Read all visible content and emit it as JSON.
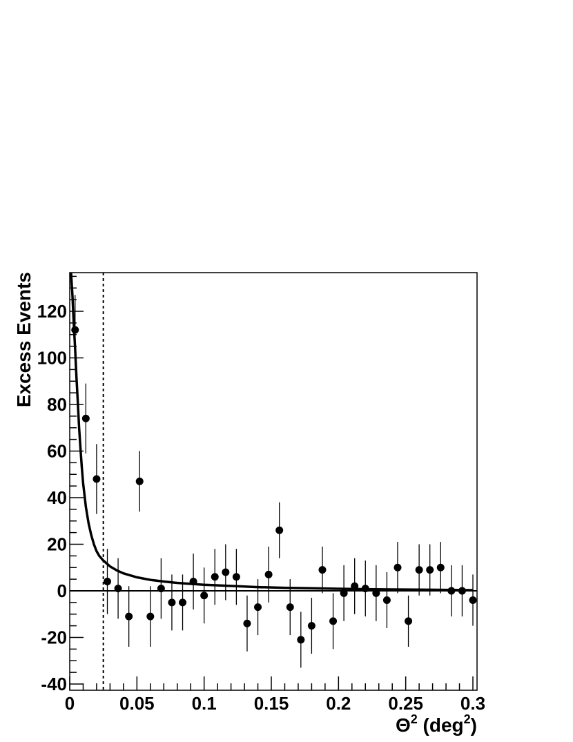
{
  "chart_data": {
    "type": "scatter",
    "title": "",
    "xlabel": {
      "symbol": "Θ",
      "sup": "2",
      "unit_open": " (deg",
      "unit_sup": "2",
      "unit_close": ")"
    },
    "ylabel": "Excess Events",
    "xlim": [
      0,
      0.3
    ],
    "ylim": [
      -40,
      138
    ],
    "grid": false,
    "x_ticks": [
      "0",
      "0.05",
      "0.1",
      "0.15",
      "0.2",
      "0.25",
      "0.3"
    ],
    "x_tick_values": [
      0,
      0.05,
      0.1,
      0.15,
      0.2,
      0.25,
      0.3
    ],
    "y_ticks": [
      "-40",
      "-20",
      "0",
      "20",
      "40",
      "60",
      "80",
      "100",
      "120"
    ],
    "y_tick_values": [
      -40,
      -20,
      0,
      20,
      40,
      60,
      80,
      100,
      120
    ],
    "cut_line_x": 0.025,
    "zero_line_y": 0,
    "series": [
      {
        "x": [
          0.004,
          0.012,
          0.02,
          0.028,
          0.036,
          0.044,
          0.052,
          0.06,
          0.068,
          0.076,
          0.084,
          0.092,
          0.1,
          0.108,
          0.116,
          0.124,
          0.132,
          0.14,
          0.148,
          0.156,
          0.164,
          0.172,
          0.18,
          0.188,
          0.196,
          0.204,
          0.212,
          0.22,
          0.228,
          0.236,
          0.244,
          0.252,
          0.26,
          0.268,
          0.276,
          0.284,
          0.292,
          0.3
        ],
        "y": [
          112,
          74,
          48,
          4,
          1,
          -11,
          47,
          -11,
          1,
          -5,
          -5,
          4,
          -2,
          6,
          8,
          6,
          -14,
          -7,
          7,
          26,
          -7,
          -21,
          -15,
          9,
          -13,
          -1,
          2,
          1,
          -1,
          -4,
          10,
          -13,
          9,
          9,
          10,
          0,
          0,
          -4
        ],
        "yerr": [
          15,
          15,
          15,
          14,
          13,
          13,
          13,
          13,
          13,
          12,
          12,
          12,
          12,
          12,
          12,
          12,
          12,
          12,
          12,
          12,
          12,
          12,
          12,
          10,
          12,
          12,
          12,
          12,
          12,
          12,
          11,
          11,
          11,
          11,
          11,
          11,
          11,
          11
        ]
      }
    ],
    "fit_curve": {
      "x": [
        0.001,
        0.002,
        0.003,
        0.004,
        0.005,
        0.006,
        0.007,
        0.008,
        0.009,
        0.01,
        0.012,
        0.014,
        0.016,
        0.018,
        0.02,
        0.022,
        0.025,
        0.03,
        0.035,
        0.04,
        0.05,
        0.06,
        0.07,
        0.08,
        0.1,
        0.12,
        0.14,
        0.16,
        0.18,
        0.2,
        0.22,
        0.24,
        0.26,
        0.28,
        0.3
      ],
      "y": [
        138,
        127,
        115,
        104,
        92,
        81,
        70,
        61,
        53,
        46,
        36,
        29,
        24,
        20,
        17,
        15,
        13,
        10.5,
        8.8,
        7.5,
        5.8,
        4.7,
        4,
        3.4,
        2.6,
        2.1,
        1.6,
        1.3,
        1.1,
        0.9,
        0.7,
        0.6,
        0.5,
        0.4,
        0.3
      ]
    }
  }
}
